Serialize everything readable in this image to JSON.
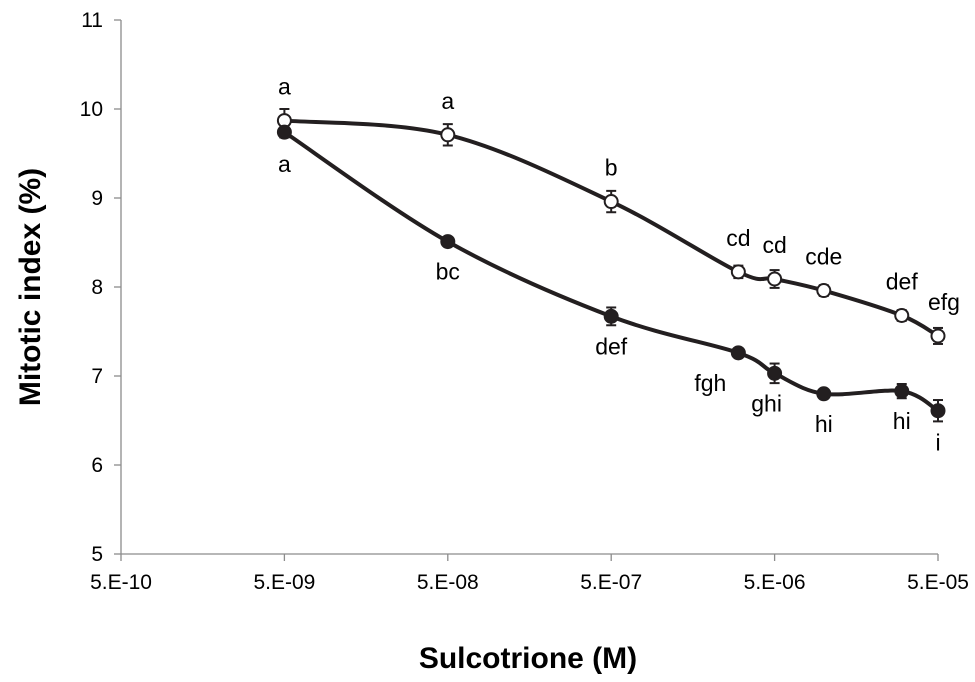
{
  "chart_data": {
    "type": "line",
    "title": "",
    "xlabel": "Sulcotrione (M)",
    "ylabel": "Mitotic index (%)",
    "xscale": "log",
    "ylim": [
      5,
      11
    ],
    "xlim": [
      5e-10,
      5e-05
    ],
    "yticks": [
      5,
      6,
      7,
      8,
      9,
      10,
      11
    ],
    "xtick_values": [
      5e-10,
      5e-09,
      5e-08,
      5e-07,
      5e-06,
      5e-05
    ],
    "xtick_labels": [
      "5.E-10",
      "5.E-09",
      "5.E-08",
      "5.E-07",
      "5.E-06",
      "5.E-05"
    ],
    "grid": false,
    "legend": "none",
    "series": [
      {
        "marker": "open-circle",
        "color": "#231f20",
        "x": [
          5e-09,
          5e-08,
          5e-07,
          3e-06,
          5e-06,
          1e-05,
          3e-05,
          5e-05
        ],
        "y": [
          9.87,
          9.71,
          8.96,
          8.17,
          8.09,
          7.96,
          7.68,
          7.45
        ],
        "err": [
          0.13,
          0.12,
          0.12,
          0.07,
          0.1,
          0.06,
          0.06,
          0.09
        ],
        "labels": [
          "a",
          "a",
          "b",
          "cd",
          "cd",
          "cde",
          "def",
          "efg"
        ]
      },
      {
        "marker": "filled-circle",
        "color": "#231f20",
        "x": [
          5e-09,
          5e-08,
          5e-07,
          3e-06,
          5e-06,
          1e-05,
          3e-05,
          5e-05
        ],
        "y": [
          9.74,
          8.51,
          7.67,
          7.26,
          7.03,
          6.8,
          6.83,
          6.61
        ],
        "err": [
          0.06,
          0.05,
          0.1,
          0.04,
          0.11,
          0.03,
          0.08,
          0.12
        ],
        "labels": [
          "a",
          "bc",
          "def",
          "fgh",
          "ghi",
          "hi",
          "hi",
          "i"
        ]
      }
    ]
  }
}
